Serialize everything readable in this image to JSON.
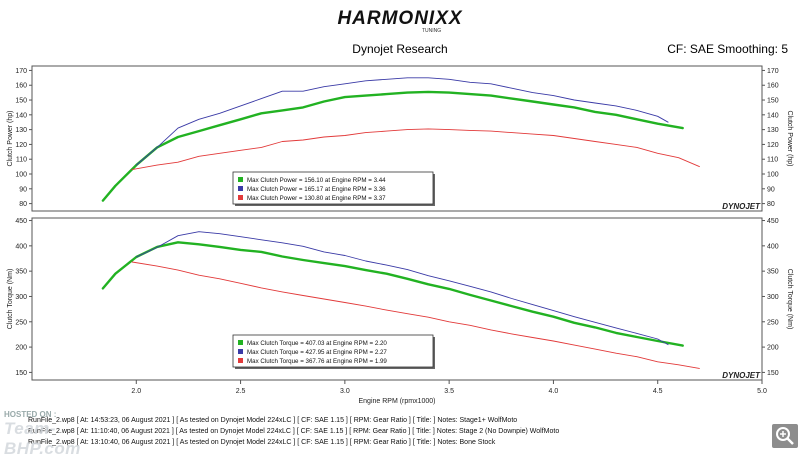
{
  "header": {
    "logo_text": "HARMONIXX",
    "logo_subtext": "TUNING",
    "title": "Dynojet Research",
    "cf_text": "CF: SAE Smoothing: 5"
  },
  "brand_mark": "DYNOJET",
  "chart_data": [
    {
      "type": "line",
      "name": "power",
      "ylabel": "Clutch Power (hp)",
      "ylabel_right": "Clutch Power (hp)",
      "xlim": [
        1.5,
        5.0
      ],
      "ylim": [
        75,
        173
      ],
      "y_ticks": [
        80,
        90,
        100,
        110,
        120,
        130,
        140,
        150,
        160,
        170
      ],
      "legend": [
        "Max Clutch Power = 156.10 at Engine RPM = 3.44",
        "Max Clutch Power = 165.17 at Engine RPM = 3.36",
        "Max Clutch Power = 130.80 at Engine RPM = 3.37"
      ],
      "legend_position": "bottom-center",
      "grid": false,
      "series": [
        {
          "color": "#22b222",
          "x": [
            1.84,
            1.9,
            2.0,
            2.1,
            2.2,
            2.3,
            2.4,
            2.5,
            2.6,
            2.7,
            2.8,
            2.9,
            3.0,
            3.1,
            3.2,
            3.3,
            3.4,
            3.5,
            3.6,
            3.7,
            3.8,
            3.9,
            4.0,
            4.1,
            4.2,
            4.3,
            4.4,
            4.5,
            4.62
          ],
          "y": [
            82,
            92,
            106,
            118,
            125,
            129,
            133,
            137,
            141,
            143,
            145,
            149,
            152,
            153,
            154,
            155,
            155.5,
            155,
            154,
            153,
            151,
            149,
            147,
            145,
            142,
            140,
            137,
            134,
            131
          ]
        },
        {
          "color": "#3a3aa6",
          "x": [
            2.0,
            2.1,
            2.2,
            2.3,
            2.4,
            2.5,
            2.6,
            2.7,
            2.8,
            2.9,
            3.0,
            3.1,
            3.2,
            3.3,
            3.4,
            3.5,
            3.6,
            3.7,
            3.8,
            3.9,
            4.0,
            4.1,
            4.2,
            4.3,
            4.4,
            4.5,
            4.55
          ],
          "y": [
            106,
            118,
            131,
            137,
            141,
            146,
            151,
            156,
            156,
            159,
            161,
            163,
            164,
            165,
            165,
            164,
            162,
            161,
            158,
            155,
            153,
            150,
            148,
            146,
            143,
            139,
            135
          ]
        },
        {
          "color": "#e23a3a",
          "x": [
            1.98,
            2.1,
            2.2,
            2.3,
            2.4,
            2.5,
            2.6,
            2.7,
            2.8,
            2.9,
            3.0,
            3.1,
            3.2,
            3.3,
            3.4,
            3.5,
            3.6,
            3.7,
            3.8,
            3.9,
            4.0,
            4.1,
            4.2,
            4.3,
            4.4,
            4.5,
            4.6,
            4.7
          ],
          "y": [
            103,
            106,
            108,
            112,
            114,
            116,
            118,
            122,
            123,
            125,
            126,
            128,
            129,
            130,
            130.5,
            130,
            129.5,
            129,
            128,
            127,
            126,
            124,
            122,
            120,
            118,
            114,
            111,
            105
          ]
        }
      ]
    },
    {
      "type": "line",
      "name": "torque",
      "xlabel": "Engine RPM (rpmx1000)",
      "ylabel": "Clutch Torque (Nm)",
      "ylabel_right": "Clutch Torque (Nm)",
      "xlim": [
        1.5,
        5.0
      ],
      "ylim": [
        135,
        455
      ],
      "x_ticks": [
        "2.0",
        "2.5",
        "3.0",
        "3.5",
        "4.0",
        "4.5",
        "5.0"
      ],
      "y_ticks": [
        150,
        200,
        250,
        300,
        350,
        400,
        450
      ],
      "legend": [
        "Max Clutch Torque = 407.03 at Engine RPM = 2.20",
        "Max Clutch Torque = 427.95 at Engine RPM = 2.27",
        "Max Clutch Torque = 367.76 at Engine RPM = 1.99"
      ],
      "legend_position": "bottom-center",
      "grid": false,
      "series": [
        {
          "color": "#22b222",
          "x": [
            1.84,
            1.9,
            2.0,
            2.1,
            2.2,
            2.3,
            2.4,
            2.5,
            2.6,
            2.7,
            2.8,
            2.9,
            3.0,
            3.1,
            3.2,
            3.3,
            3.4,
            3.5,
            3.6,
            3.7,
            3.8,
            3.9,
            4.0,
            4.1,
            4.2,
            4.3,
            4.4,
            4.5,
            4.62
          ],
          "y": [
            316,
            345,
            378,
            398,
            407,
            403,
            398,
            392,
            388,
            379,
            372,
            366,
            360,
            352,
            345,
            335,
            324,
            315,
            303,
            292,
            281,
            270,
            260,
            248,
            239,
            228,
            220,
            212,
            203
          ]
        },
        {
          "color": "#3a3aa6",
          "x": [
            2.0,
            2.1,
            2.2,
            2.3,
            2.4,
            2.5,
            2.6,
            2.7,
            2.8,
            2.9,
            3.0,
            3.1,
            3.2,
            3.3,
            3.4,
            3.5,
            3.6,
            3.7,
            3.8,
            3.9,
            4.0,
            4.1,
            4.2,
            4.3,
            4.4,
            4.5,
            4.55
          ],
          "y": [
            378,
            397,
            420,
            428,
            424,
            418,
            412,
            406,
            399,
            388,
            381,
            370,
            362,
            353,
            341,
            331,
            320,
            309,
            296,
            284,
            272,
            260,
            249,
            238,
            227,
            216,
            205
          ]
        },
        {
          "color": "#e23a3a",
          "x": [
            1.98,
            2.1,
            2.2,
            2.3,
            2.4,
            2.5,
            2.6,
            2.7,
            2.8,
            2.9,
            3.0,
            3.1,
            3.2,
            3.3,
            3.4,
            3.5,
            3.6,
            3.7,
            3.8,
            3.9,
            4.0,
            4.1,
            4.2,
            4.3,
            4.4,
            4.5,
            4.6,
            4.7
          ],
          "y": [
            368,
            360,
            352,
            342,
            335,
            326,
            317,
            309,
            302,
            295,
            288,
            281,
            273,
            266,
            259,
            250,
            243,
            234,
            226,
            219,
            212,
            204,
            196,
            188,
            181,
            171,
            165,
            158
          ]
        }
      ]
    }
  ],
  "runs": [
    "RunFile_2.wp8 [ At: 14:53:23, 06 August 2021 ] [ As tested on Dynojet Model 224xLC ] [ CF: SAE 1.15 ] [ RPM: Gear Ratio ] [ Title: ]  Notes: Stage1+ WolfMoto",
    "RunFile_2.wp8 [ At: 11:10:40, 06 August 2021 ] [ As tested on Dynojet Model 224xLC ] [ CF: SAE 1.15 ] [ RPM: Gear Ratio ] [ Title: ]  Notes: Stage 2 (No Downpie) WolfMoto",
    "RunFile_2.wp8 [ At: 13:10:40, 06 August 2021 ] [ As tested on Dynojet Model 224xLC ] [ CF: SAE 1.15 ] [ RPM: Gear Ratio ] [ Title: ]  Notes: Bone Stock"
  ],
  "watermark": {
    "hosted": "HOSTED ON :",
    "brand": "Team-BHP.com"
  },
  "icons": {
    "zoom": "zoom-icon"
  }
}
